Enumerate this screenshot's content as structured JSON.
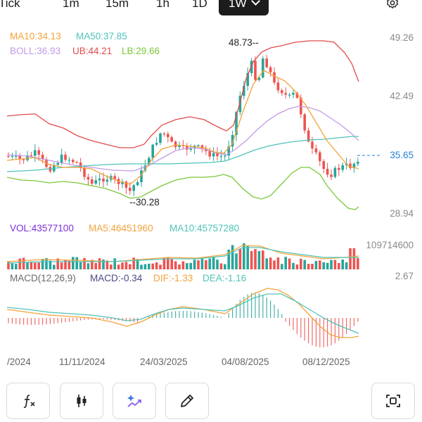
{
  "tabs": [
    {
      "label": "Tick",
      "active": false
    },
    {
      "label": "1m",
      "active": false
    },
    {
      "label": "15m",
      "active": false
    },
    {
      "label": "1h",
      "active": false
    },
    {
      "label": "1D",
      "active": false
    },
    {
      "label": "1W",
      "active": true
    }
  ],
  "indicators": {
    "ma10": "MA10:34.13",
    "ma50": "MA50:37.85",
    "boll": "BOLL:36.93",
    "ub": "UB:44.21",
    "lb": "LB:29.66"
  },
  "price_axis": {
    "levels": [
      "49.26",
      "42.49",
      "35.65",
      "28.94"
    ],
    "current": "35.65"
  },
  "annotations": {
    "high": "48.73",
    "low": "30.28"
  },
  "volume": {
    "vol": "VOL:43577100",
    "ma5": "MA5:46451960",
    "ma10": "MA10:45757280",
    "max": "109714600"
  },
  "macd": {
    "label": "MACD(12,26,9)",
    "macd": "MACD:-0.34",
    "dif": "DIF:-1.33",
    "dea": "DEA:-1.16",
    "max": "2.67"
  },
  "dates": [
    "/2024",
    "11/11/2024",
    "24/03/2025",
    "04/08/2025",
    "08/12/2025"
  ],
  "colors": {
    "up": "#27a59a",
    "down": "#ef5350",
    "ma10": "#f3a33a",
    "ma50": "#4fc3b8",
    "boll": "#c39be8",
    "ub": "#e34b4b",
    "lb": "#7cc83a",
    "vol": "#7b2fd6",
    "macd": "#4a4a8a",
    "current": "#2a7fd6"
  },
  "toolbar": [
    {
      "icon": "function-icon"
    },
    {
      "icon": "candlestick-icon"
    },
    {
      "icon": "magic-chart-icon"
    },
    {
      "icon": "pencil-icon"
    },
    {
      "icon": "screenshot-icon"
    }
  ]
}
